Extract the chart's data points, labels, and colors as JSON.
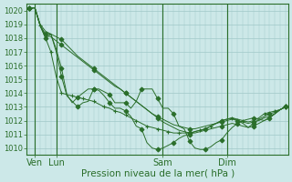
{
  "background_color": "#cce8e8",
  "grid_color": "#a0c8c8",
  "line_color": "#2a6e2a",
  "marker_color": "#2a6e2a",
  "title": "Pression niveau de la mer( hPa )",
  "ylim": [
    1009.5,
    1020.5
  ],
  "yticks": [
    1010,
    1011,
    1012,
    1013,
    1014,
    1015,
    1016,
    1017,
    1018,
    1019,
    1020
  ],
  "xlim": [
    -0.5,
    48.5
  ],
  "n_points": 49,
  "xtick_labels": [
    "Ven",
    "Lun",
    "Sam",
    "Dim"
  ],
  "xtick_positions": [
    1,
    5,
    25,
    37
  ],
  "vline_positions": [
    1,
    5,
    25,
    37
  ],
  "series": [
    [
      1020.2,
      1020.2,
      1018.9,
      1018.2,
      1018.1,
      1017.8,
      1017.5,
      1017.2,
      1016.9,
      1016.6,
      1016.3,
      1016.0,
      1015.7,
      1015.4,
      1015.1,
      1014.8,
      1014.5,
      1014.3,
      1014.0,
      1013.7,
      1013.4,
      1013.1,
      1012.8,
      1012.5,
      1012.2,
      1011.9,
      1011.7,
      1011.5,
      1011.3,
      1011.2,
      1011.1,
      1011.1,
      1011.2,
      1011.3,
      1011.4,
      1011.5,
      1011.6,
      1011.7,
      1011.8,
      1011.7,
      1011.6,
      1011.5,
      1011.6,
      1011.8,
      1012.0,
      1012.2,
      1012.5,
      1012.8,
      1013.0
    ],
    [
      1020.2,
      1020.2,
      1019.0,
      1018.5,
      1018.3,
      1018.1,
      1017.9,
      1017.5,
      1017.1,
      1016.7,
      1016.4,
      1016.1,
      1015.8,
      1015.5,
      1015.2,
      1014.9,
      1014.6,
      1014.3,
      1014.0,
      1013.7,
      1013.4,
      1013.1,
      1012.8,
      1012.5,
      1012.3,
      1012.1,
      1011.9,
      1011.7,
      1011.6,
      1011.5,
      1011.4,
      1011.4,
      1011.5,
      1011.6,
      1011.7,
      1011.8,
      1011.9,
      1012.0,
      1012.1,
      1012.0,
      1011.9,
      1011.8,
      1011.9,
      1012.0,
      1012.2,
      1012.3,
      1012.5,
      1012.8,
      1013.0
    ],
    [
      1020.2,
      1020.2,
      1018.9,
      1018.3,
      1018.3,
      1017.0,
      1015.2,
      1013.8,
      1013.4,
      1013.0,
      1013.3,
      1013.4,
      1014.3,
      1014.3,
      1014.1,
      1013.9,
      1013.3,
      1013.3,
      1013.3,
      1012.9,
      1013.4,
      1014.3,
      1014.3,
      1014.3,
      1013.6,
      1012.9,
      1012.9,
      1012.5,
      1011.6,
      1011.4,
      1010.5,
      1010.0,
      1009.9,
      1009.9,
      1010.1,
      1010.4,
      1010.6,
      1011.1,
      1011.5,
      1011.8,
      1012.0,
      1012.1,
      1012.2,
      1012.1,
      1012.0,
      1012.2,
      1012.5,
      1012.8,
      1013.0
    ],
    [
      1020.2,
      1020.2,
      1018.9,
      1018.0,
      1018.3,
      1017.2,
      1015.8,
      1013.9,
      1013.3,
      1013.7,
      1014.0,
      1014.3,
      1014.3,
      1014.2,
      1013.8,
      1013.3,
      1012.9,
      1012.9,
      1012.7,
      1012.3,
      1011.6,
      1011.4,
      1010.4,
      1010.0,
      1009.9,
      1010.0,
      1010.2,
      1010.4,
      1010.7,
      1010.9,
      1011.0,
      1011.2,
      1011.3,
      1011.4,
      1011.6,
      1011.8,
      1012.0,
      1012.1,
      1012.2,
      1012.0,
      1011.8,
      1011.5,
      1011.8,
      1012.1,
      1012.3,
      1012.5,
      1012.6,
      1012.8,
      1013.0
    ],
    [
      1020.2,
      1020.2,
      1018.9,
      1018.0,
      1017.0,
      1015.2,
      1014.0,
      1013.9,
      1013.8,
      1013.7,
      1013.6,
      1013.5,
      1013.4,
      1013.2,
      1013.0,
      1012.9,
      1012.7,
      1012.6,
      1012.4,
      1012.2,
      1012.0,
      1011.8,
      1011.6,
      1011.5,
      1011.4,
      1011.3,
      1011.2,
      1011.1,
      1011.1,
      1011.1,
      1011.1,
      1011.2,
      1011.3,
      1011.4,
      1011.6,
      1011.8,
      1012.0,
      1012.1,
      1012.2,
      1012.1,
      1012.0,
      1011.9,
      1012.0,
      1012.2,
      1012.5,
      1012.6,
      1012.7,
      1012.8,
      1013.0
    ]
  ],
  "series_markers": [
    {
      "every": 6,
      "marker": "D",
      "size": 2.5
    },
    {
      "every": 6,
      "marker": "D",
      "size": 2.5
    },
    {
      "every": 3,
      "marker": "D",
      "size": 2.5
    },
    {
      "every": 3,
      "marker": "D",
      "size": 2.5
    },
    {
      "every": 2,
      "marker": "+",
      "size": 3.5
    }
  ],
  "figsize": [
    3.2,
    2.0
  ],
  "dpi": 100
}
